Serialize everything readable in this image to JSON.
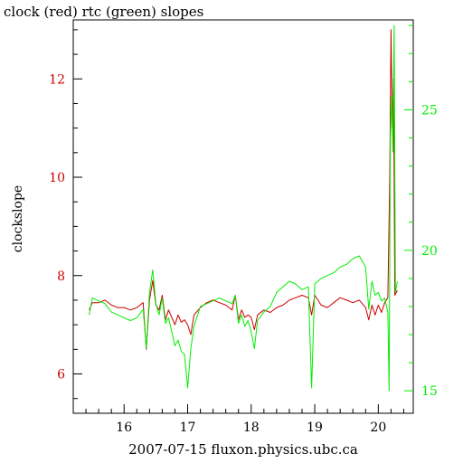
{
  "chart_data": {
    "type": "line",
    "title": "clock (red) rtc (green) slopes",
    "xlabel": "2007-07-15  fluxon.physics.ubc.ca",
    "ylabel": "clockslope",
    "x_ticks": [
      "16",
      "17",
      "18",
      "19",
      "20"
    ],
    "xlim": [
      15.2,
      20.55
    ],
    "y_left": {
      "color": "#cc0000",
      "ticks": [
        "6",
        "8",
        "10",
        "12"
      ],
      "lim": [
        5.2,
        13.2
      ]
    },
    "y_right": {
      "color": "#00ee00",
      "ticks": [
        "15",
        "20",
        "25"
      ],
      "lim": [
        14.2,
        28.2
      ]
    },
    "grid": false,
    "series": [
      {
        "name": "clock",
        "color": "#cc0000",
        "axis": "left",
        "points": [
          [
            15.45,
            7.3
          ],
          [
            15.5,
            7.45
          ],
          [
            15.6,
            7.45
          ],
          [
            15.7,
            7.5
          ],
          [
            15.8,
            7.4
          ],
          [
            15.9,
            7.35
          ],
          [
            16.0,
            7.35
          ],
          [
            16.1,
            7.3
          ],
          [
            16.2,
            7.35
          ],
          [
            16.3,
            7.45
          ],
          [
            16.35,
            6.5
          ],
          [
            16.4,
            7.5
          ],
          [
            16.45,
            7.9
          ],
          [
            16.5,
            7.4
          ],
          [
            16.55,
            7.3
          ],
          [
            16.6,
            7.6
          ],
          [
            16.65,
            7.1
          ],
          [
            16.7,
            7.3
          ],
          [
            16.75,
            7.15
          ],
          [
            16.8,
            7.0
          ],
          [
            16.85,
            7.2
          ],
          [
            16.9,
            7.05
          ],
          [
            16.95,
            7.1
          ],
          [
            17.0,
            7.0
          ],
          [
            17.05,
            6.8
          ],
          [
            17.1,
            7.2
          ],
          [
            17.2,
            7.35
          ],
          [
            17.3,
            7.45
          ],
          [
            17.4,
            7.5
          ],
          [
            17.5,
            7.45
          ],
          [
            17.6,
            7.4
          ],
          [
            17.7,
            7.3
          ],
          [
            17.75,
            7.6
          ],
          [
            17.8,
            7.1
          ],
          [
            17.85,
            7.3
          ],
          [
            17.9,
            7.15
          ],
          [
            17.95,
            7.2
          ],
          [
            18.0,
            7.15
          ],
          [
            18.05,
            6.9
          ],
          [
            18.1,
            7.2
          ],
          [
            18.2,
            7.3
          ],
          [
            18.3,
            7.25
          ],
          [
            18.4,
            7.35
          ],
          [
            18.5,
            7.4
          ],
          [
            18.6,
            7.5
          ],
          [
            18.7,
            7.55
          ],
          [
            18.8,
            7.6
          ],
          [
            18.9,
            7.55
          ],
          [
            18.95,
            7.2
          ],
          [
            19.0,
            7.6
          ],
          [
            19.05,
            7.5
          ],
          [
            19.1,
            7.4
          ],
          [
            19.2,
            7.35
          ],
          [
            19.3,
            7.45
          ],
          [
            19.4,
            7.55
          ],
          [
            19.5,
            7.5
          ],
          [
            19.6,
            7.45
          ],
          [
            19.7,
            7.5
          ],
          [
            19.8,
            7.35
          ],
          [
            19.85,
            7.1
          ],
          [
            19.9,
            7.4
          ],
          [
            19.95,
            7.2
          ],
          [
            20.0,
            7.4
          ],
          [
            20.05,
            7.25
          ],
          [
            20.1,
            7.45
          ],
          [
            20.15,
            7.55
          ],
          [
            20.18,
            10.0
          ],
          [
            20.2,
            13.0
          ],
          [
            20.22,
            11.0
          ],
          [
            20.24,
            12.0
          ],
          [
            20.26,
            7.6
          ],
          [
            20.3,
            7.7
          ]
        ]
      },
      {
        "name": "rtc",
        "color": "#00ee00",
        "axis": "right",
        "points": [
          [
            15.45,
            17.7
          ],
          [
            15.5,
            18.3
          ],
          [
            15.6,
            18.2
          ],
          [
            15.7,
            18.1
          ],
          [
            15.8,
            17.8
          ],
          [
            15.9,
            17.7
          ],
          [
            16.0,
            17.6
          ],
          [
            16.1,
            17.5
          ],
          [
            16.2,
            17.6
          ],
          [
            16.3,
            17.9
          ],
          [
            16.35,
            16.5
          ],
          [
            16.4,
            18.5
          ],
          [
            16.45,
            19.3
          ],
          [
            16.5,
            18.1
          ],
          [
            16.55,
            17.7
          ],
          [
            16.6,
            18.3
          ],
          [
            16.65,
            17.4
          ],
          [
            16.7,
            17.6
          ],
          [
            16.75,
            17.1
          ],
          [
            16.8,
            16.6
          ],
          [
            16.85,
            16.8
          ],
          [
            16.9,
            16.4
          ],
          [
            16.95,
            16.3
          ],
          [
            17.0,
            15.1
          ],
          [
            17.05,
            16.5
          ],
          [
            17.1,
            17.3
          ],
          [
            17.2,
            18.0
          ],
          [
            17.3,
            18.1
          ],
          [
            17.4,
            18.2
          ],
          [
            17.5,
            18.3
          ],
          [
            17.6,
            18.2
          ],
          [
            17.7,
            18.1
          ],
          [
            17.75,
            18.4
          ],
          [
            17.8,
            17.4
          ],
          [
            17.85,
            17.7
          ],
          [
            17.9,
            17.3
          ],
          [
            17.95,
            17.5
          ],
          [
            18.0,
            17.1
          ],
          [
            18.05,
            16.5
          ],
          [
            18.1,
            17.5
          ],
          [
            18.2,
            17.8
          ],
          [
            18.3,
            18.0
          ],
          [
            18.4,
            18.5
          ],
          [
            18.5,
            18.7
          ],
          [
            18.6,
            18.9
          ],
          [
            18.7,
            18.8
          ],
          [
            18.8,
            18.6
          ],
          [
            18.9,
            18.7
          ],
          [
            18.95,
            15.1
          ],
          [
            19.0,
            18.8
          ],
          [
            19.1,
            19.0
          ],
          [
            19.2,
            19.1
          ],
          [
            19.3,
            19.2
          ],
          [
            19.4,
            19.4
          ],
          [
            19.5,
            19.5
          ],
          [
            19.6,
            19.7
          ],
          [
            19.7,
            19.8
          ],
          [
            19.8,
            19.4
          ],
          [
            19.85,
            17.9
          ],
          [
            19.9,
            18.9
          ],
          [
            19.95,
            18.4
          ],
          [
            20.0,
            18.5
          ],
          [
            20.05,
            18.2
          ],
          [
            20.1,
            18.3
          ],
          [
            20.15,
            17.8
          ],
          [
            20.17,
            15.0
          ],
          [
            20.19,
            24.0
          ],
          [
            20.21,
            25.5
          ],
          [
            20.23,
            23.5
          ],
          [
            20.25,
            28.0
          ],
          [
            20.27,
            18.5
          ],
          [
            20.3,
            18.9
          ]
        ]
      }
    ]
  }
}
